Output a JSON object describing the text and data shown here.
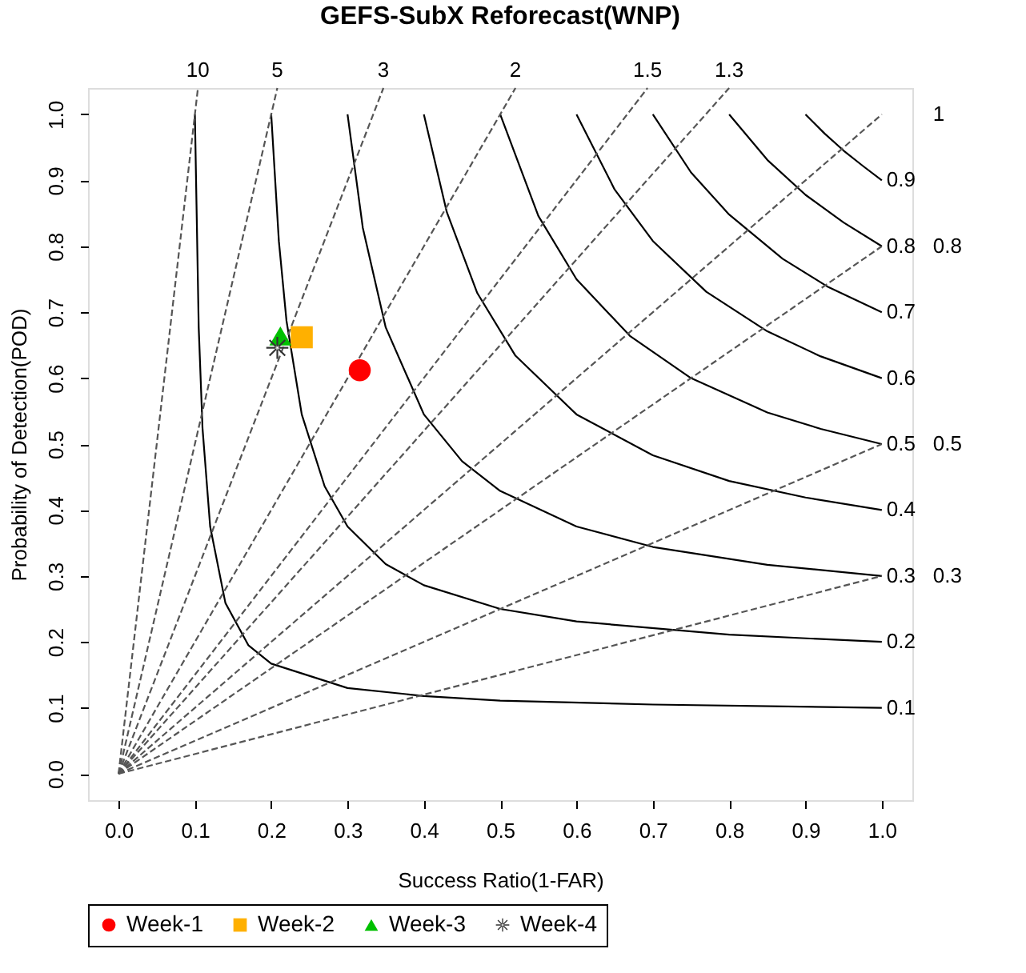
{
  "chart_data": {
    "type": "scatter",
    "title": "GEFS-SubX Reforecast(WNP)",
    "xlabel": "Success Ratio(1-FAR)",
    "ylabel": "Probability of Detection(POD)",
    "xlim": [
      -0.04,
      1.04
    ],
    "ylim": [
      -0.04,
      1.04
    ],
    "xticks": [
      {
        "value": 0,
        "label": "0.0"
      },
      {
        "value": 0.1,
        "label": "0.1"
      },
      {
        "value": 0.2,
        "label": "0.2"
      },
      {
        "value": 0.3,
        "label": "0.3"
      },
      {
        "value": 0.4,
        "label": "0.4"
      },
      {
        "value": 0.5,
        "label": "0.5"
      },
      {
        "value": 0.6,
        "label": "0.6"
      },
      {
        "value": 0.7,
        "label": "0.7"
      },
      {
        "value": 0.8,
        "label": "0.8"
      },
      {
        "value": 0.9,
        "label": "0.9"
      },
      {
        "value": 1,
        "label": "1.0"
      }
    ],
    "yticks": [
      {
        "value": 0,
        "label": "0.0"
      },
      {
        "value": 0.1,
        "label": "0.1"
      },
      {
        "value": 0.2,
        "label": "0.2"
      },
      {
        "value": 0.3,
        "label": "0.3"
      },
      {
        "value": 0.4,
        "label": "0.4"
      },
      {
        "value": 0.5,
        "label": "0.5"
      },
      {
        "value": 0.6,
        "label": "0.6"
      },
      {
        "value": 0.7,
        "label": "0.7"
      },
      {
        "value": 0.8,
        "label": "0.8"
      },
      {
        "value": 0.9,
        "label": "0.9"
      },
      {
        "value": 1,
        "label": "1.0"
      }
    ],
    "legend": "bottom",
    "series": [
      {
        "type": "line",
        "name": "0.1",
        "color": "#000000",
        "line_style": "solid",
        "marker": "none",
        "x": [
          0.1,
          0.105,
          0.11,
          0.12,
          0.14,
          0.17,
          0.2,
          0.3,
          0.4,
          0.5,
          0.7,
          1
        ],
        "values": [
          1,
          0.677,
          0.524,
          0.375,
          0.259,
          0.195,
          0.167,
          0.13,
          0.118,
          0.111,
          0.105,
          0.1
        ]
      },
      {
        "type": "line",
        "name": "0.2",
        "color": "#000000",
        "line_style": "solid",
        "marker": "none",
        "x": [
          0.2,
          0.21,
          0.22,
          0.24,
          0.27,
          0.3,
          0.35,
          0.4,
          0.5,
          0.6,
          0.8,
          1
        ],
        "values": [
          1,
          0.808,
          0.687,
          0.545,
          0.436,
          0.375,
          0.318,
          0.286,
          0.25,
          0.231,
          0.211,
          0.2
        ]
      },
      {
        "type": "line",
        "name": "0.3",
        "color": "#000000",
        "line_style": "solid",
        "marker": "none",
        "x": [
          0.3,
          0.32,
          0.35,
          0.4,
          0.45,
          0.5,
          0.6,
          0.7,
          0.85,
          1
        ],
        "values": [
          1,
          0.828,
          0.677,
          0.545,
          0.474,
          0.429,
          0.375,
          0.344,
          0.317,
          0.3
        ]
      },
      {
        "type": "line",
        "name": "0.4",
        "color": "#000000",
        "line_style": "solid",
        "marker": "none",
        "x": [
          0.4,
          0.43,
          0.47,
          0.52,
          0.6,
          0.7,
          0.8,
          0.9,
          1
        ],
        "values": [
          1,
          0.852,
          0.729,
          0.634,
          0.545,
          0.483,
          0.444,
          0.419,
          0.4
        ]
      },
      {
        "type": "line",
        "name": "0.5",
        "color": "#000000",
        "line_style": "solid",
        "marker": "none",
        "x": [
          0.5,
          0.55,
          0.6,
          0.67,
          0.75,
          0.85,
          0.92,
          1
        ],
        "values": [
          1,
          0.846,
          0.75,
          0.664,
          0.6,
          0.548,
          0.523,
          0.5
        ]
      },
      {
        "type": "line",
        "name": "0.6",
        "color": "#000000",
        "line_style": "solid",
        "marker": "none",
        "x": [
          0.6,
          0.65,
          0.7,
          0.77,
          0.85,
          0.92,
          1
        ],
        "values": [
          1,
          0.886,
          0.808,
          0.731,
          0.671,
          0.633,
          0.6
        ]
      },
      {
        "type": "line",
        "name": "0.7",
        "color": "#000000",
        "line_style": "solid",
        "marker": "none",
        "x": [
          0.7,
          0.75,
          0.8,
          0.87,
          0.93,
          1
        ],
        "values": [
          1,
          0.912,
          0.848,
          0.781,
          0.738,
          0.7
        ]
      },
      {
        "type": "line",
        "name": "0.8",
        "color": "#000000",
        "line_style": "solid",
        "marker": "none",
        "x": [
          0.8,
          0.85,
          0.9,
          0.95,
          1
        ],
        "values": [
          1,
          0.931,
          0.878,
          0.836,
          0.8
        ]
      },
      {
        "type": "line",
        "name": "0.9",
        "color": "#000000",
        "line_style": "solid",
        "marker": "none",
        "x": [
          0.9,
          0.925,
          0.95,
          0.975,
          1
        ],
        "values": [
          1,
          0.971,
          0.945,
          0.922,
          0.9
        ]
      },
      {
        "type": "line",
        "name": "10",
        "color": "#555555",
        "line_style": "dashed",
        "marker": "none",
        "x": [
          0,
          0.104
        ],
        "values": [
          0,
          1.04
        ]
      },
      {
        "type": "line",
        "name": "5",
        "color": "#555555",
        "line_style": "dashed",
        "marker": "none",
        "x": [
          0,
          0.208
        ],
        "values": [
          0,
          1.04
        ]
      },
      {
        "type": "line",
        "name": "3",
        "color": "#555555",
        "line_style": "dashed",
        "marker": "none",
        "x": [
          0,
          0.347
        ],
        "values": [
          0,
          1.04
        ]
      },
      {
        "type": "line",
        "name": "2",
        "color": "#555555",
        "line_style": "dashed",
        "marker": "none",
        "x": [
          0,
          0.52
        ],
        "values": [
          0,
          1.04
        ]
      },
      {
        "type": "line",
        "name": "1.5",
        "color": "#555555",
        "line_style": "dashed",
        "marker": "none",
        "x": [
          0,
          0.693
        ],
        "values": [
          0,
          1.04
        ]
      },
      {
        "type": "line",
        "name": "1.3",
        "color": "#555555",
        "line_style": "dashed",
        "marker": "none",
        "x": [
          0,
          0.8
        ],
        "values": [
          0,
          1.04
        ]
      },
      {
        "type": "line",
        "name": "1",
        "color": "#555555",
        "line_style": "dashed",
        "marker": "none",
        "x": [
          0,
          1
        ],
        "values": [
          0,
          1
        ]
      },
      {
        "type": "line",
        "name": "0.8",
        "color": "#555555",
        "line_style": "dashed",
        "marker": "none",
        "x": [
          0,
          1
        ],
        "values": [
          0,
          0.8
        ]
      },
      {
        "type": "line",
        "name": "0.5",
        "color": "#555555",
        "line_style": "dashed",
        "marker": "none",
        "x": [
          0,
          1
        ],
        "values": [
          0,
          0.5
        ]
      },
      {
        "type": "line",
        "name": "0.3",
        "color": "#555555",
        "line_style": "dashed",
        "marker": "none",
        "x": [
          0,
          1
        ],
        "values": [
          0,
          0.3
        ]
      },
      {
        "name": "Week-1",
        "color": "#ff0000",
        "marker": "circle",
        "x": [
          0.316
        ],
        "values": [
          0.612
        ]
      },
      {
        "name": "Week-2",
        "color": "#ffb000",
        "marker": "square",
        "x": [
          0.24
        ],
        "values": [
          0.662
        ]
      },
      {
        "name": "Week-3",
        "color": "#00c000",
        "marker": "triangle",
        "x": [
          0.212
        ],
        "values": [
          0.664
        ]
      },
      {
        "name": "Week-4",
        "color": "#333333",
        "marker": "star",
        "x": [
          0.208
        ],
        "values": [
          0.646
        ]
      }
    ]
  }
}
